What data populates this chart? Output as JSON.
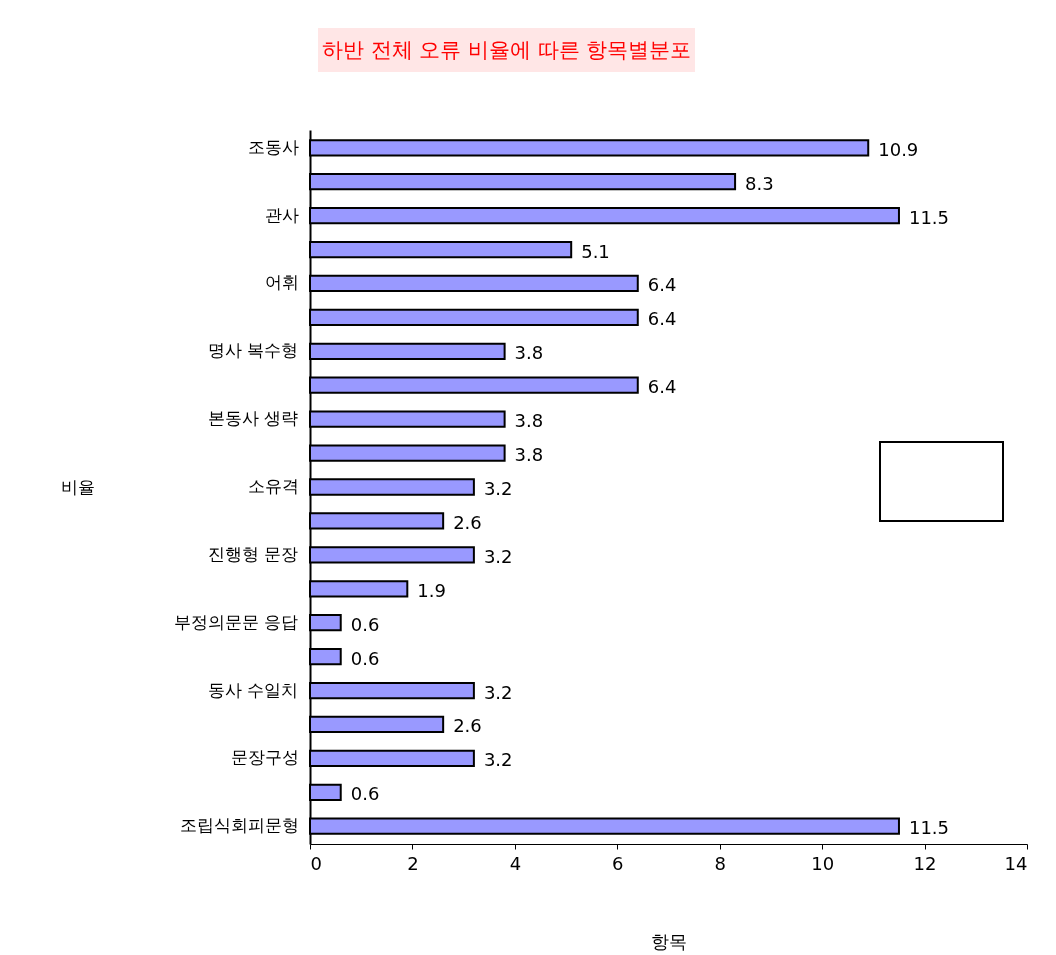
{
  "chart_data": {
    "type": "bar",
    "orientation": "horizontal",
    "title": "하반 전체 오류 비율에 따른 항목별분포",
    "xlabel": "항목",
    "ylabel": "비율",
    "categories": [
      "조동사",
      null,
      "관사",
      null,
      "어휘",
      null,
      "명사 복수형",
      null,
      "본동사 생략",
      null,
      "소유격",
      null,
      "진행형 문장",
      null,
      "부정의문문 응답",
      null,
      "동사 수일치",
      null,
      "문장구성",
      null,
      "조립식회피문형"
    ],
    "values": [
      10.9,
      8.3,
      11.5,
      5.1,
      6.4,
      6.4,
      3.8,
      6.4,
      3.8,
      3.8,
      3.2,
      2.6,
      3.2,
      1.9,
      0.6,
      0.6,
      3.2,
      2.6,
      3.2,
      0.6,
      11.5
    ],
    "color": "#9999ff",
    "xlim": [
      0,
      14
    ],
    "xticks": [
      0,
      2,
      4,
      6,
      8,
      10,
      12,
      14
    ],
    "data_labels": true,
    "grid": false
  }
}
